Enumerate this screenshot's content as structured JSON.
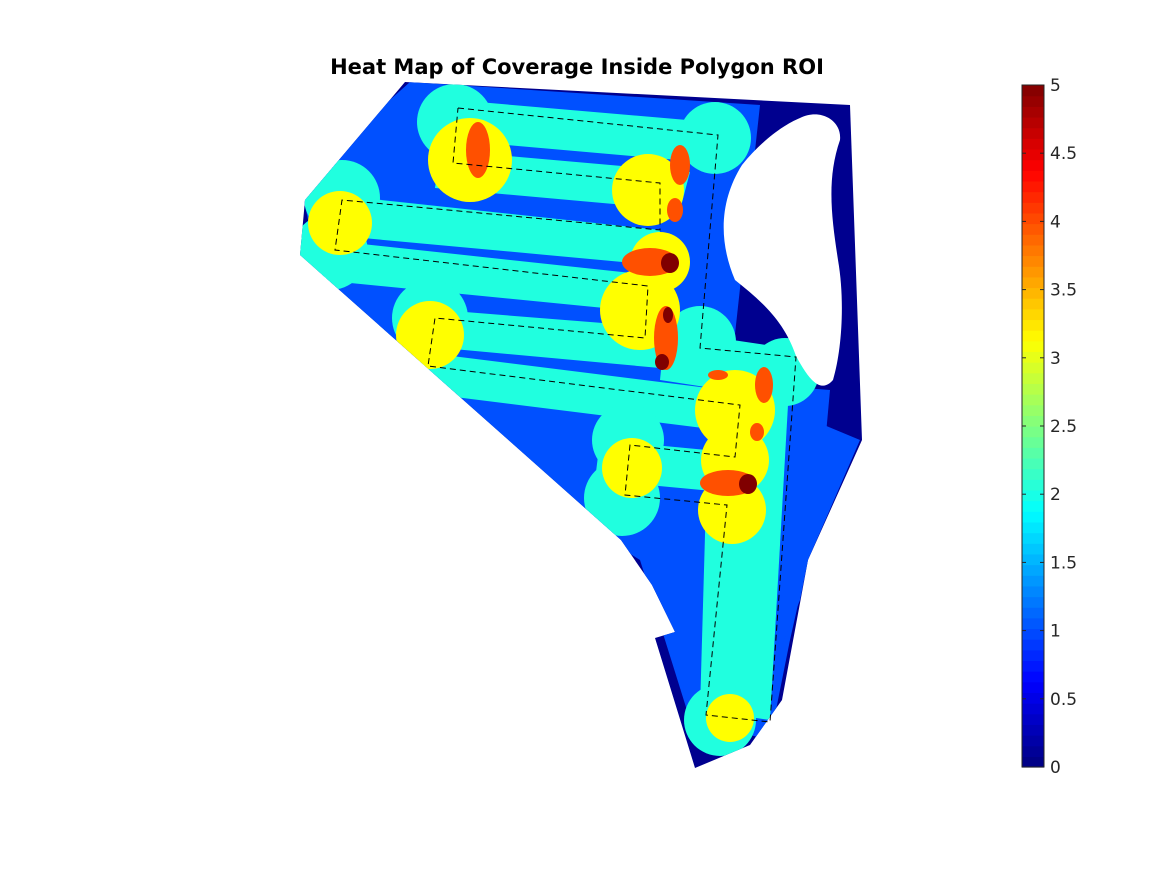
{
  "chart_data": {
    "type": "heatmap",
    "title": "Heat Map of Coverage Inside Polygon ROI",
    "xlabel": "",
    "ylabel": "",
    "colormap": "jet",
    "clim": [
      0,
      5
    ],
    "colorbar": {
      "position": "right",
      "ticks": [
        0,
        0.5,
        1,
        1.5,
        2,
        2.5,
        3,
        3.5,
        4,
        4.5,
        5
      ],
      "tick_labels": [
        "0",
        "0.5",
        "1",
        "1.5",
        "2",
        "2.5",
        "3",
        "3.5",
        "4",
        "4.5",
        "5"
      ]
    },
    "value_colors": {
      "0": "#00008f",
      "1": "#0050ff",
      "2": "#20ffdf",
      "3": "#ffff00",
      "4": "#ff5000",
      "5": "#800000"
    },
    "background_color": "#ffffff",
    "dashed_path_color": "#000000",
    "coverage_levels": [
      0,
      1,
      2,
      3,
      4,
      5
    ],
    "axes_visible": false,
    "grid": false
  }
}
